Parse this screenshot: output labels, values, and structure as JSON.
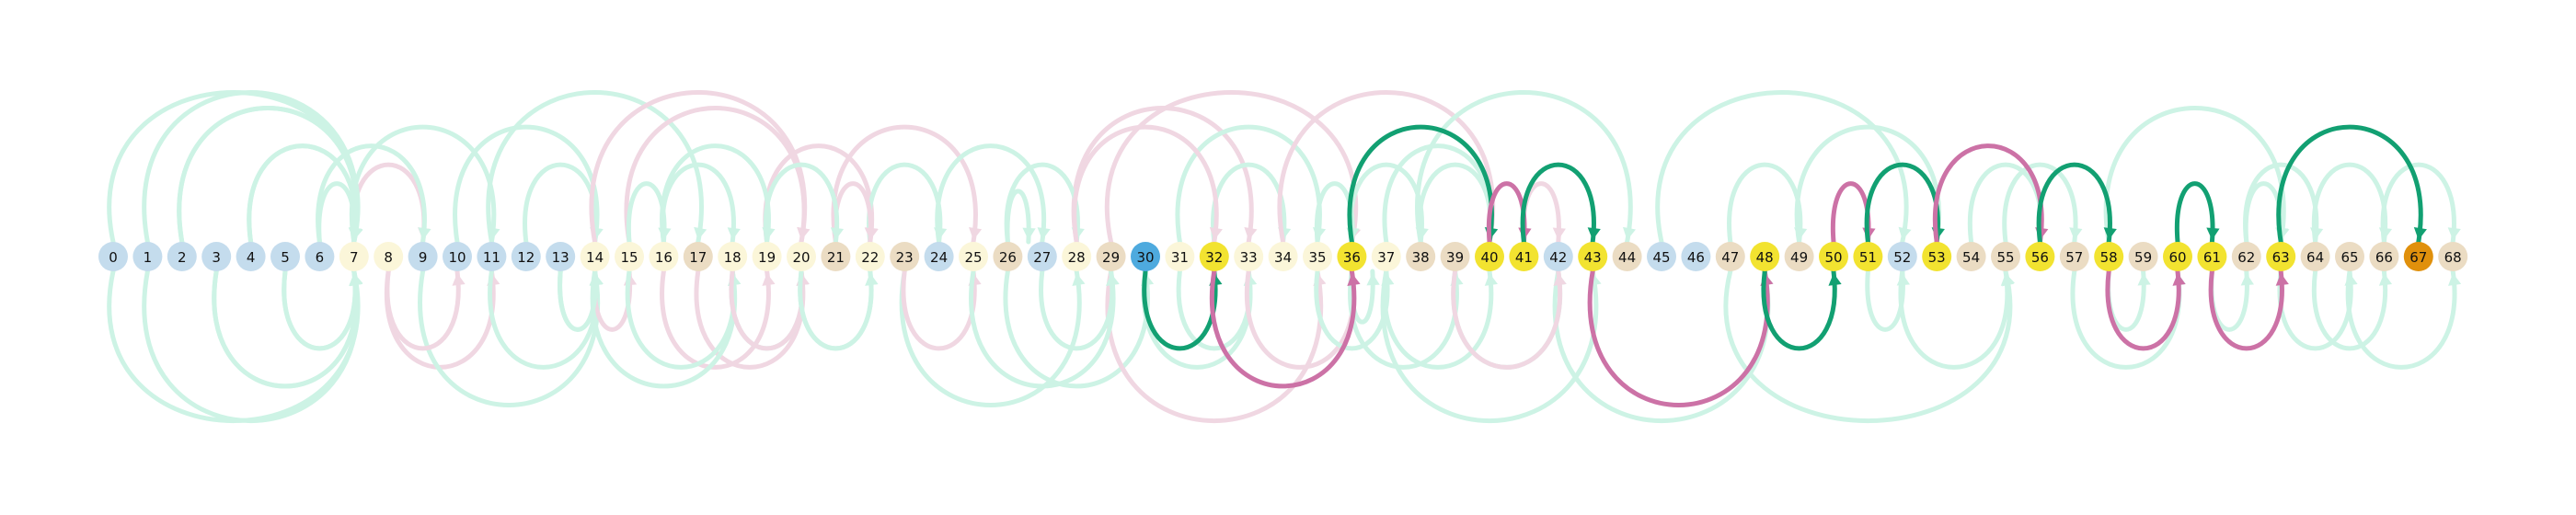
{
  "colors": {
    "node_blue": "#c4dced",
    "node_pale_yellow": "#fbf6d9",
    "node_beige": "#ebdcc3",
    "node_yellow": "#f2e330",
    "node_sky": "#4eaade",
    "node_orange": "#e0900c",
    "arc_green": "#12a072",
    "arc_pink": "#cc72a6",
    "arc_faded_green": "#cdf3e5",
    "arc_faded_pink": "#f0d7e2"
  },
  "nodes": [
    {
      "label": "0",
      "fill": "node_blue"
    },
    {
      "label": "1",
      "fill": "node_blue"
    },
    {
      "label": "2",
      "fill": "node_blue"
    },
    {
      "label": "3",
      "fill": "node_blue"
    },
    {
      "label": "4",
      "fill": "node_blue"
    },
    {
      "label": "5",
      "fill": "node_blue"
    },
    {
      "label": "6",
      "fill": "node_blue"
    },
    {
      "label": "7",
      "fill": "node_pale_yellow"
    },
    {
      "label": "8",
      "fill": "node_pale_yellow"
    },
    {
      "label": "9",
      "fill": "node_blue"
    },
    {
      "label": "10",
      "fill": "node_blue"
    },
    {
      "label": "11",
      "fill": "node_blue"
    },
    {
      "label": "12",
      "fill": "node_blue"
    },
    {
      "label": "13",
      "fill": "node_blue"
    },
    {
      "label": "14",
      "fill": "node_pale_yellow"
    },
    {
      "label": "15",
      "fill": "node_pale_yellow"
    },
    {
      "label": "16",
      "fill": "node_pale_yellow"
    },
    {
      "label": "17",
      "fill": "node_beige"
    },
    {
      "label": "18",
      "fill": "node_pale_yellow"
    },
    {
      "label": "19",
      "fill": "node_pale_yellow"
    },
    {
      "label": "20",
      "fill": "node_pale_yellow"
    },
    {
      "label": "21",
      "fill": "node_beige"
    },
    {
      "label": "22",
      "fill": "node_pale_yellow"
    },
    {
      "label": "23",
      "fill": "node_beige"
    },
    {
      "label": "24",
      "fill": "node_blue"
    },
    {
      "label": "25",
      "fill": "node_pale_yellow"
    },
    {
      "label": "26",
      "fill": "node_beige"
    },
    {
      "label": "27",
      "fill": "node_blue"
    },
    {
      "label": "28",
      "fill": "node_pale_yellow"
    },
    {
      "label": "29",
      "fill": "node_beige"
    },
    {
      "label": "30",
      "fill": "node_sky"
    },
    {
      "label": "31",
      "fill": "node_pale_yellow"
    },
    {
      "label": "32",
      "fill": "node_yellow"
    },
    {
      "label": "33",
      "fill": "node_pale_yellow"
    },
    {
      "label": "34",
      "fill": "node_pale_yellow"
    },
    {
      "label": "35",
      "fill": "node_pale_yellow"
    },
    {
      "label": "36",
      "fill": "node_yellow"
    },
    {
      "label": "37",
      "fill": "node_pale_yellow"
    },
    {
      "label": "38",
      "fill": "node_beige"
    },
    {
      "label": "39",
      "fill": "node_beige"
    },
    {
      "label": "40",
      "fill": "node_yellow"
    },
    {
      "label": "41",
      "fill": "node_yellow"
    },
    {
      "label": "42",
      "fill": "node_blue"
    },
    {
      "label": "43",
      "fill": "node_yellow"
    },
    {
      "label": "44",
      "fill": "node_beige"
    },
    {
      "label": "45",
      "fill": "node_blue"
    },
    {
      "label": "46",
      "fill": "node_blue"
    },
    {
      "label": "47",
      "fill": "node_beige"
    },
    {
      "label": "48",
      "fill": "node_yellow"
    },
    {
      "label": "49",
      "fill": "node_beige"
    },
    {
      "label": "50",
      "fill": "node_yellow"
    },
    {
      "label": "51",
      "fill": "node_yellow"
    },
    {
      "label": "52",
      "fill": "node_blue"
    },
    {
      "label": "53",
      "fill": "node_yellow"
    },
    {
      "label": "54",
      "fill": "node_beige"
    },
    {
      "label": "55",
      "fill": "node_beige"
    },
    {
      "label": "56",
      "fill": "node_yellow"
    },
    {
      "label": "57",
      "fill": "node_beige"
    },
    {
      "label": "58",
      "fill": "node_yellow"
    },
    {
      "label": "59",
      "fill": "node_beige"
    },
    {
      "label": "60",
      "fill": "node_yellow"
    },
    {
      "label": "61",
      "fill": "node_yellow"
    },
    {
      "label": "62",
      "fill": "node_beige"
    },
    {
      "label": "63",
      "fill": "node_yellow"
    },
    {
      "label": "64",
      "fill": "node_beige"
    },
    {
      "label": "65",
      "fill": "node_beige"
    },
    {
      "label": "66",
      "fill": "node_beige"
    },
    {
      "label": "67",
      "fill": "node_orange"
    },
    {
      "label": "68",
      "fill": "node_beige"
    }
  ],
  "arcs": [
    {
      "from": 30,
      "to": 32,
      "color": "arc_green"
    },
    {
      "from": 32,
      "to": 36,
      "color": "arc_pink"
    },
    {
      "from": 36,
      "to": 40,
      "color": "arc_green"
    },
    {
      "from": 40,
      "to": 41,
      "color": "arc_pink"
    },
    {
      "from": 41,
      "to": 43,
      "color": "arc_green"
    },
    {
      "from": 43,
      "to": 48,
      "color": "arc_pink"
    },
    {
      "from": 48,
      "to": 50,
      "color": "arc_green"
    },
    {
      "from": 50,
      "to": 51,
      "color": "arc_pink"
    },
    {
      "from": 51,
      "to": 53,
      "color": "arc_green"
    },
    {
      "from": 53,
      "to": 56,
      "color": "arc_pink"
    },
    {
      "from": 56,
      "to": 58,
      "color": "arc_green"
    },
    {
      "from": 58,
      "to": 60,
      "color": "arc_pink"
    },
    {
      "from": 60,
      "to": 61,
      "color": "arc_green"
    },
    {
      "from": 61,
      "to": 63,
      "color": "arc_pink"
    },
    {
      "from": 63,
      "to": 67,
      "color": "arc_green"
    },
    {
      "from": 1,
      "to": 7,
      "color": "arc_faded_green"
    },
    {
      "from": 0,
      "to": 7,
      "color": "arc_faded_green"
    },
    {
      "from": 2,
      "to": 7,
      "color": "arc_faded_green"
    },
    {
      "from": 3,
      "to": 7,
      "color": "arc_faded_green"
    },
    {
      "from": 4,
      "to": 7,
      "color": "arc_faded_green"
    },
    {
      "from": 5,
      "to": 7,
      "color": "arc_faded_green"
    },
    {
      "from": 6,
      "to": 7,
      "color": "arc_faded_green"
    },
    {
      "from": 8,
      "to": 11,
      "color": "arc_faded_pink"
    },
    {
      "from": 7,
      "to": 9,
      "color": "arc_faded_pink"
    },
    {
      "from": 9,
      "to": 14,
      "color": "arc_faded_green"
    },
    {
      "from": 10,
      "to": 14,
      "color": "arc_faded_green"
    },
    {
      "from": 11,
      "to": 14,
      "color": "arc_faded_green"
    },
    {
      "from": 12,
      "to": 14,
      "color": "arc_faded_green"
    },
    {
      "from": 13,
      "to": 14,
      "color": "arc_faded_green"
    },
    {
      "from": 11,
      "to": 17,
      "color": "arc_faded_green"
    },
    {
      "from": 14,
      "to": 15,
      "color": "arc_faded_pink"
    },
    {
      "from": 15,
      "to": 20,
      "color": "arc_faded_pink"
    },
    {
      "from": 16,
      "to": 19,
      "color": "arc_faded_pink"
    },
    {
      "from": 14,
      "to": 20,
      "color": "arc_faded_pink"
    },
    {
      "from": 17,
      "to": 20,
      "color": "arc_faded_pink"
    },
    {
      "from": 19,
      "to": 22,
      "color": "arc_faded_pink"
    },
    {
      "from": 15,
      "to": 18,
      "color": "arc_faded_green"
    },
    {
      "from": 16,
      "to": 18,
      "color": "arc_faded_green"
    },
    {
      "from": 18,
      "to": 20,
      "color": "arc_faded_green"
    },
    {
      "from": 21,
      "to": 25,
      "color": "arc_faded_pink"
    },
    {
      "from": 20,
      "to": 22,
      "color": "arc_faded_green"
    },
    {
      "from": 22,
      "to": 24,
      "color": "arc_faded_green"
    },
    {
      "from": 23,
      "to": 28,
      "color": "arc_faded_green"
    },
    {
      "from": 26,
      "to": 26,
      "color": "arc_faded_green"
    },
    {
      "from": 26,
      "to": 30,
      "color": "arc_faded_green"
    },
    {
      "from": 28,
      "to": 33,
      "color": "arc_faded_pink"
    },
    {
      "from": 29,
      "to": 35,
      "color": "arc_faded_pink"
    },
    {
      "from": 29,
      "to": 36,
      "color": "arc_faded_pink"
    },
    {
      "from": 30,
      "to": 33,
      "color": "arc_faded_green"
    },
    {
      "from": 31,
      "to": 35,
      "color": "arc_faded_green"
    },
    {
      "from": 31,
      "to": 33,
      "color": "arc_faded_green"
    },
    {
      "from": 32,
      "to": 34,
      "color": "arc_faded_green"
    },
    {
      "from": 36,
      "to": 36,
      "color": "arc_faded_green"
    },
    {
      "from": 35,
      "to": 36,
      "color": "arc_faded_green"
    },
    {
      "from": 37,
      "to": 40,
      "color": "arc_faded_green"
    },
    {
      "from": 38,
      "to": 40,
      "color": "arc_faded_green"
    },
    {
      "from": 39,
      "to": 42,
      "color": "arc_faded_green"
    },
    {
      "from": 41,
      "to": 42,
      "color": "arc_faded_pink"
    },
    {
      "from": 42,
      "to": 48,
      "color": "arc_faded_green"
    },
    {
      "from": 45,
      "to": 52,
      "color": "arc_faded_green"
    },
    {
      "from": 47,
      "to": 55,
      "color": "arc_faded_green"
    },
    {
      "from": 49,
      "to": 53,
      "color": "arc_faded_green"
    },
    {
      "from": 52,
      "to": 55,
      "color": "arc_faded_green"
    },
    {
      "from": 54,
      "to": 56,
      "color": "arc_faded_green"
    },
    {
      "from": 57,
      "to": 60,
      "color": "arc_faded_green"
    },
    {
      "from": 58,
      "to": 63,
      "color": "arc_faded_green"
    },
    {
      "from": 61,
      "to": 62,
      "color": "arc_faded_green"
    },
    {
      "from": 62,
      "to": 64,
      "color": "arc_faded_green"
    },
    {
      "from": 64,
      "to": 66,
      "color": "arc_faded_green"
    },
    {
      "from": 66,
      "to": 68,
      "color": "arc_faded_green"
    },
    {
      "from": 65,
      "to": 68,
      "color": "arc_faded_green"
    },
    {
      "from": 0,
      "to": 7,
      "color": "arc_faded_green"
    },
    {
      "from": 1,
      "to": 7,
      "color": "arc_faded_green"
    },
    {
      "from": 2,
      "to": 7,
      "color": "arc_faded_green"
    },
    {
      "from": 3,
      "to": 7,
      "color": "arc_faded_green"
    },
    {
      "from": 4,
      "to": 7,
      "color": "arc_faded_green"
    },
    {
      "from": 5,
      "to": 7,
      "color": "arc_faded_green"
    },
    {
      "from": 6,
      "to": 9,
      "color": "arc_faded_green"
    },
    {
      "from": 8,
      "to": 10,
      "color": "arc_faded_pink"
    },
    {
      "from": 7,
      "to": 11,
      "color": "arc_faded_green"
    },
    {
      "from": 13,
      "to": 14,
      "color": "arc_faded_green"
    },
    {
      "from": 15,
      "to": 16,
      "color": "arc_faded_green"
    },
    {
      "from": 14,
      "to": 18,
      "color": "arc_faded_green"
    },
    {
      "from": 16,
      "to": 19,
      "color": "arc_faded_green"
    },
    {
      "from": 18,
      "to": 20,
      "color": "arc_faded_pink"
    },
    {
      "from": 21,
      "to": 22,
      "color": "arc_faded_pink"
    },
    {
      "from": 20,
      "to": 22,
      "color": "arc_faded_green"
    },
    {
      "from": 19,
      "to": 21,
      "color": "arc_faded_green"
    },
    {
      "from": 23,
      "to": 25,
      "color": "arc_faded_pink"
    },
    {
      "from": 24,
      "to": 27,
      "color": "arc_faded_green"
    },
    {
      "from": 25,
      "to": 29,
      "color": "arc_faded_green"
    },
    {
      "from": 26,
      "to": 28,
      "color": "arc_faded_green"
    },
    {
      "from": 27,
      "to": 29,
      "color": "arc_faded_green"
    },
    {
      "from": 28,
      "to": 32,
      "color": "arc_faded_pink"
    },
    {
      "from": 33,
      "to": 36,
      "color": "arc_faded_pink"
    },
    {
      "from": 34,
      "to": 40,
      "color": "arc_faded_pink"
    },
    {
      "from": 35,
      "to": 37,
      "color": "arc_faded_green"
    },
    {
      "from": 36,
      "to": 38,
      "color": "arc_faded_green"
    },
    {
      "from": 36,
      "to": 39,
      "color": "arc_faded_green"
    },
    {
      "from": 37,
      "to": 40,
      "color": "arc_faded_green"
    },
    {
      "from": 37,
      "to": 43,
      "color": "arc_faded_green"
    },
    {
      "from": 38,
      "to": 44,
      "color": "arc_faded_green"
    },
    {
      "from": 39,
      "to": 42,
      "color": "arc_faded_pink"
    },
    {
      "from": 47,
      "to": 49,
      "color": "arc_faded_green"
    },
    {
      "from": 51,
      "to": 52,
      "color": "arc_faded_green"
    },
    {
      "from": 55,
      "to": 57,
      "color": "arc_faded_green"
    },
    {
      "from": 58,
      "to": 59,
      "color": "arc_faded_green"
    },
    {
      "from": 62,
      "to": 63,
      "color": "arc_faded_green"
    },
    {
      "from": 63,
      "to": 65,
      "color": "arc_faded_green"
    },
    {
      "from": 64,
      "to": 66,
      "color": "arc_faded_green"
    }
  ]
}
